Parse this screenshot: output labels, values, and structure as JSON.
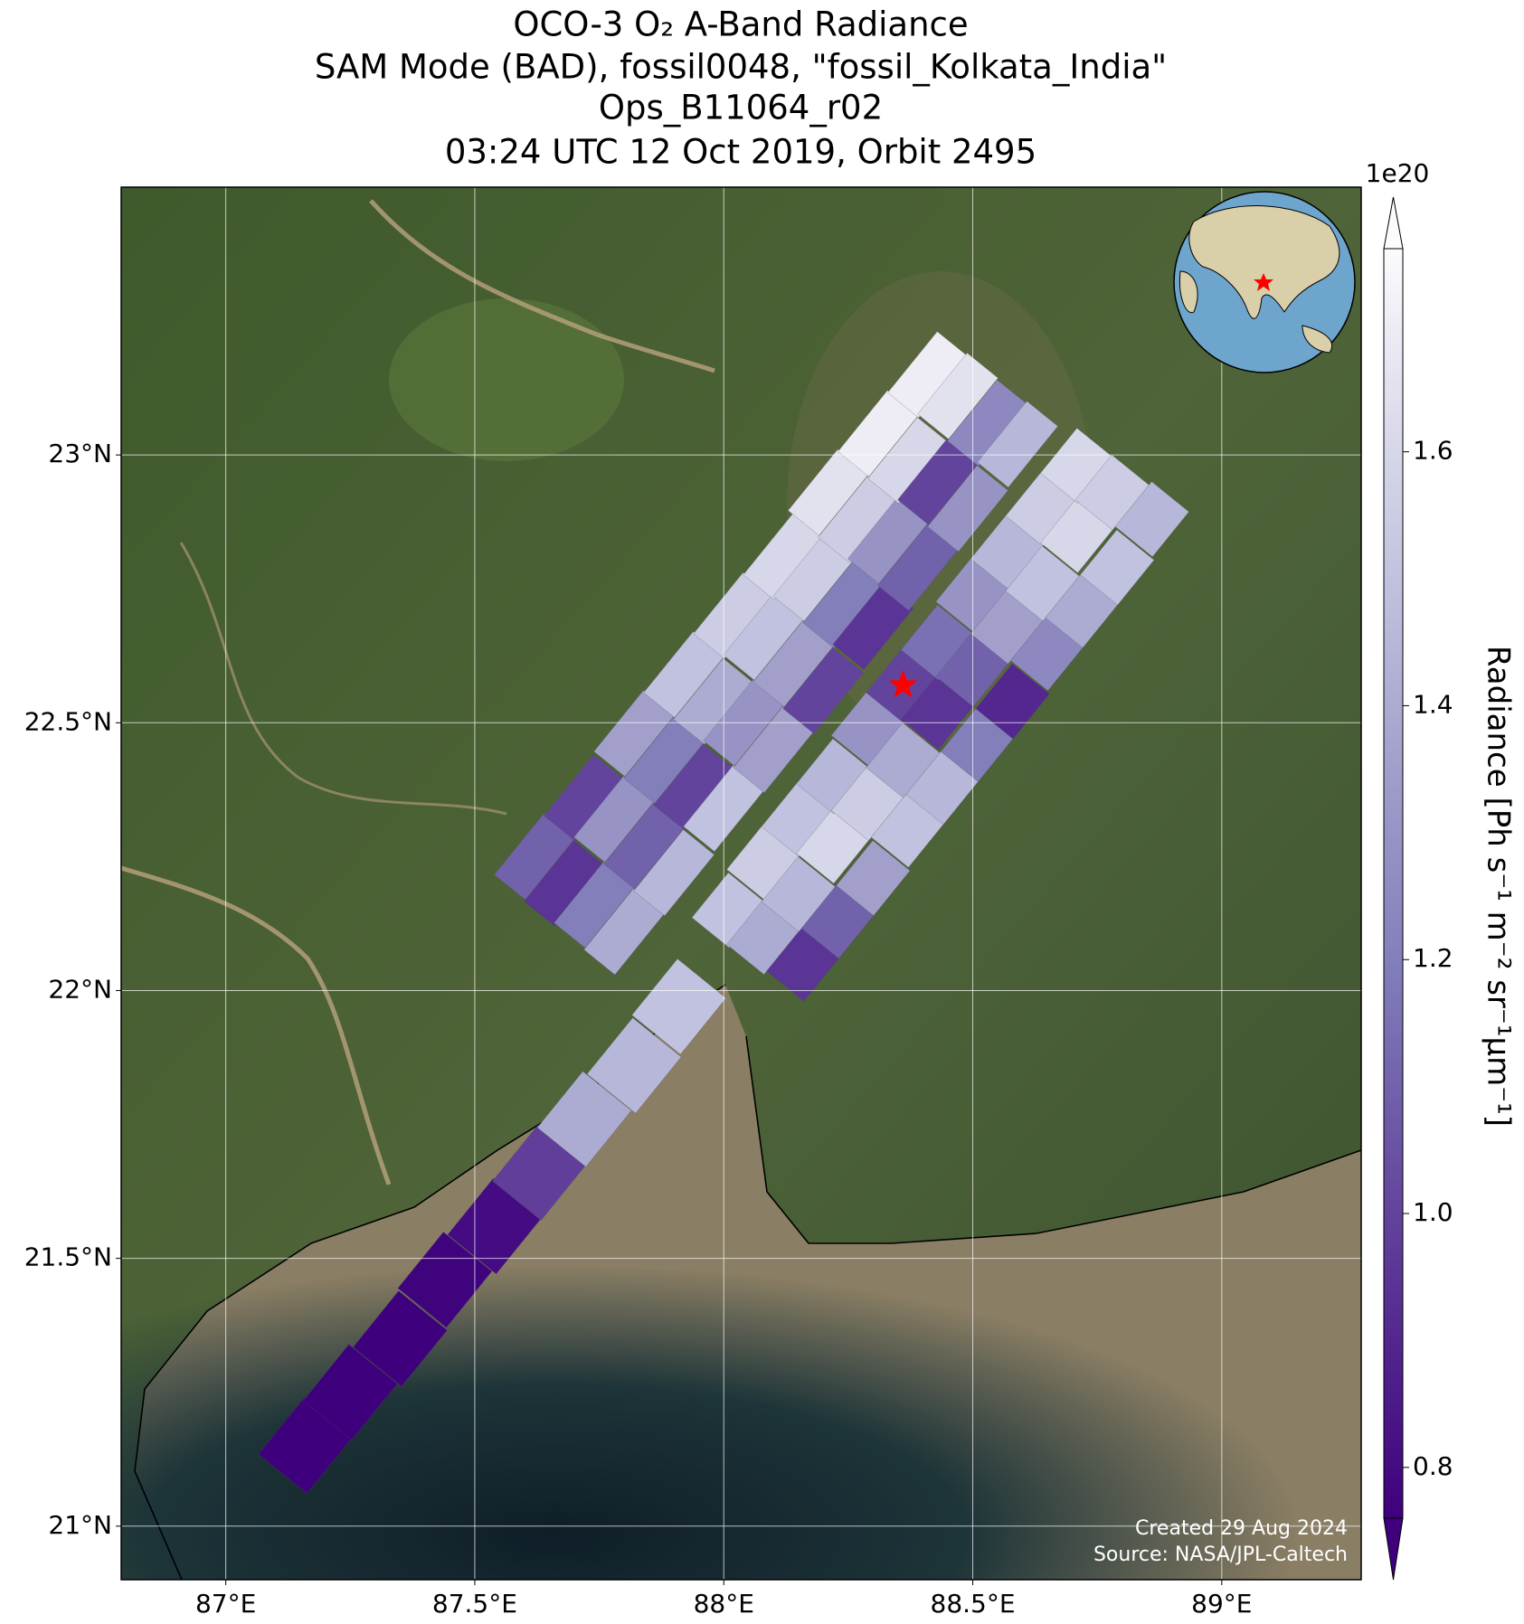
{
  "chart_data": {
    "type": "swath_map",
    "title": [
      "OCO-3 O₂ A-Band Radiance",
      "SAM Mode (BAD), fossil0048, \"fossil_Kolkata_India\"",
      "Ops_B11064_r02",
      "03:24 UTC 12 Oct 2019, Orbit 2495"
    ],
    "xlim": [
      86.79,
      89.28
    ],
    "ylim": [
      20.9,
      23.5
    ],
    "xticks": [
      {
        "value": 87,
        "label": "87°E"
      },
      {
        "value": 87.5,
        "label": "87.5°E"
      },
      {
        "value": 88,
        "label": "88°E"
      },
      {
        "value": 88.5,
        "label": "88.5°E"
      },
      {
        "value": 89,
        "label": "89°E"
      }
    ],
    "yticks": [
      {
        "value": 21,
        "label": "21°N"
      },
      {
        "value": 21.5,
        "label": "21.5°N"
      },
      {
        "value": 22,
        "label": "22°N"
      },
      {
        "value": 22.5,
        "label": "22.5°N"
      },
      {
        "value": 23,
        "label": "23°N"
      }
    ],
    "grid": true,
    "swaths": [
      {
        "lon": [
          87.16,
          87.25,
          87.35,
          87.44,
          87.54,
          87.63,
          87.72,
          87.82,
          87.91
        ],
        "lat": [
          21.15,
          21.25,
          21.35,
          21.46,
          21.56,
          21.66,
          21.76,
          21.86,
          21.97
        ],
        "values": [
          0.76,
          0.76,
          0.76,
          0.77,
          0.8,
          0.98,
          1.4,
          1.45,
          1.5
        ]
      },
      {
        "lon": [
          88.01,
          88.08,
          88.16,
          88.08,
          88.15,
          88.23,
          88.15,
          88.22,
          88.3,
          88.22,
          88.29,
          88.37,
          88.29,
          88.36,
          88.44,
          88.36,
          88.43,
          88.51,
          88.43,
          88.5,
          88.58,
          88.5,
          88.57,
          88.65,
          88.57,
          88.64,
          88.72,
          88.64,
          88.71,
          88.79,
          88.71,
          88.78,
          88.86
        ],
        "lat": [
          22.15,
          22.1,
          22.05,
          22.24,
          22.18,
          22.13,
          22.32,
          22.27,
          22.21,
          22.4,
          22.35,
          22.3,
          22.49,
          22.43,
          22.38,
          22.57,
          22.52,
          22.46,
          22.65,
          22.6,
          22.54,
          22.74,
          22.68,
          22.63,
          22.82,
          22.76,
          22.71,
          22.9,
          22.85,
          22.79,
          22.98,
          22.93,
          22.88
        ],
        "values": [
          1.5,
          1.4,
          0.95,
          1.55,
          1.45,
          1.1,
          1.5,
          1.6,
          1.35,
          1.45,
          1.55,
          1.5,
          1.3,
          1.4,
          1.45,
          1.0,
          0.95,
          1.2,
          1.15,
          1.1,
          0.9,
          1.3,
          1.35,
          1.25,
          1.45,
          1.5,
          1.4,
          1.55,
          1.6,
          1.5,
          1.6,
          1.55,
          1.45
        ]
      },
      {
        "lon": [
          87.62,
          87.68,
          87.74,
          87.8,
          87.72,
          87.78,
          87.84,
          87.9,
          87.82,
          87.88,
          87.94,
          88.0,
          87.92,
          87.98,
          88.04,
          88.1,
          88.02,
          88.08,
          88.14,
          88.2,
          88.12,
          88.18,
          88.24,
          88.3,
          88.21,
          88.27,
          88.33,
          88.39,
          88.31,
          88.37,
          88.43,
          88.49,
          88.41,
          88.47,
          88.53,
          88.59
        ],
        "lat": [
          22.25,
          22.2,
          22.16,
          22.11,
          22.36,
          22.32,
          22.27,
          22.22,
          22.48,
          22.43,
          22.38,
          22.34,
          22.59,
          22.54,
          22.5,
          22.45,
          22.7,
          22.66,
          22.61,
          22.56,
          22.81,
          22.77,
          22.72,
          22.68,
          22.93,
          22.88,
          22.84,
          22.79,
          23.04,
          22.99,
          22.95,
          22.9,
          23.15,
          23.11,
          23.06,
          23.02
        ],
        "values": [
          1.1,
          0.95,
          1.2,
          1.4,
          1.0,
          1.3,
          1.1,
          1.45,
          1.35,
          1.2,
          1.0,
          1.5,
          1.5,
          1.4,
          1.3,
          1.35,
          1.55,
          1.5,
          1.35,
          1.0,
          1.6,
          1.55,
          1.2,
          0.95,
          1.65,
          1.55,
          1.3,
          1.1,
          1.7,
          1.6,
          1.0,
          1.3,
          1.7,
          1.65,
          1.25,
          1.45
        ]
      }
    ],
    "target": {
      "lon": 88.36,
      "lat": 22.57,
      "color": "#ff0000"
    },
    "colorbar": {
      "label": "Radiance [Ph s⁻¹ m⁻² sr⁻¹μm⁻¹]",
      "offset_label": "1e20",
      "clim": [
        0.76,
        1.76
      ],
      "ticks": [
        0.8,
        {
          "value": 1,
          "label": "1.0"
        },
        1.2,
        1.4,
        1.6
      ],
      "colormap": [
        "#3f007d",
        "#54278f",
        "#6a51a3",
        "#807dba",
        "#9e9ac8",
        "#bcbddc",
        "#dadaeb",
        "#fcfbfd"
      ]
    },
    "credits": [
      "Created 29 Aug 2024",
      "Source: NASA/JPL-Caltech"
    ]
  }
}
